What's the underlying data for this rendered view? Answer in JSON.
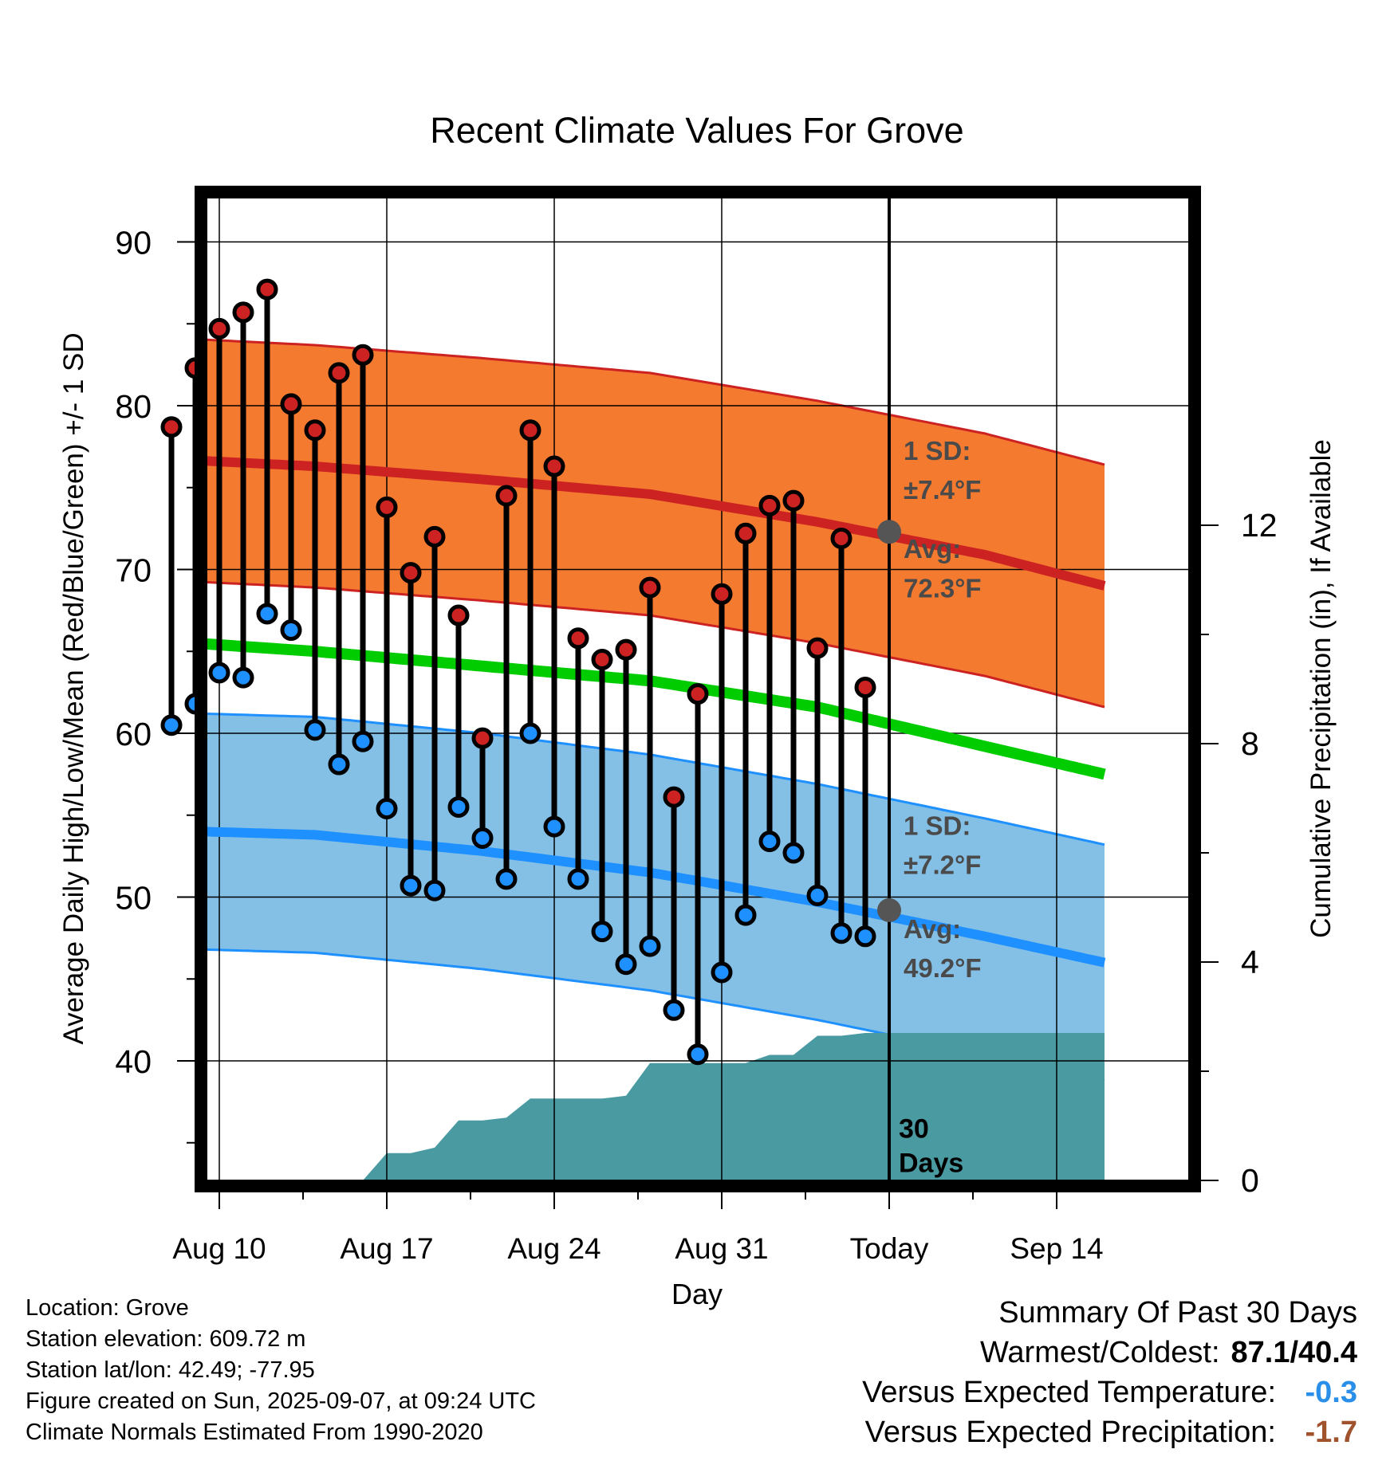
{
  "chart_data": {
    "type": "line",
    "title": "Recent Climate Values For Grove",
    "xlabel": "Day",
    "ylabel": "Average Daily High/Low/Mean (Red/Blue/Green) +/- 1 SD",
    "y2label": "Cumulative Precipitation (in), If Available",
    "ylim": [
      32.7,
      92.7
    ],
    "y2lim": [
      0,
      18
    ],
    "x_ticks": [
      "Aug 10",
      "Aug 17",
      "Aug 24",
      "Aug 31",
      "Today",
      "Sep 14"
    ],
    "y_ticks": [
      40,
      50,
      60,
      70,
      80,
      90
    ],
    "y2_ticks": [
      0,
      4,
      8,
      12
    ],
    "days": [
      "Aug 08",
      "Aug 09",
      "Aug 10",
      "Aug 11",
      "Aug 12",
      "Aug 13",
      "Aug 14",
      "Aug 15",
      "Aug 16",
      "Aug 17",
      "Aug 18",
      "Aug 19",
      "Aug 20",
      "Aug 21",
      "Aug 22",
      "Aug 23",
      "Aug 24",
      "Aug 25",
      "Aug 26",
      "Aug 27",
      "Aug 28",
      "Aug 29",
      "Aug 30",
      "Aug 31",
      "Sep 01",
      "Sep 02",
      "Sep 03",
      "Sep 04",
      "Sep 05",
      "Sep 06"
    ],
    "daily_high": [
      78.7,
      82.3,
      84.7,
      85.7,
      87.1,
      80.1,
      78.5,
      82.0,
      83.1,
      73.8,
      69.8,
      72.0,
      67.2,
      59.7,
      74.5,
      78.5,
      76.3,
      65.8,
      64.5,
      65.1,
      68.9,
      56.1,
      62.4,
      68.5,
      72.2,
      73.9,
      74.2,
      65.2,
      71.9,
      62.8
    ],
    "daily_low": [
      60.5,
      61.8,
      63.7,
      63.4,
      67.3,
      66.3,
      60.2,
      58.1,
      59.5,
      55.4,
      50.7,
      50.4,
      55.5,
      53.6,
      51.1,
      60.0,
      54.3,
      51.1,
      47.9,
      45.9,
      47.0,
      43.1,
      40.4,
      45.4,
      48.9,
      53.4,
      52.7,
      50.1,
      47.8,
      47.6
    ],
    "normal_days": [
      "Aug 07",
      "Aug 14",
      "Aug 21",
      "Aug 28",
      "Sep 04",
      "Sep 11",
      "Sep 16"
    ],
    "normal_high": [
      76.8,
      76.3,
      75.5,
      74.6,
      72.9,
      70.9,
      69.0
    ],
    "normal_high_sd": 7.4,
    "normal_low": [
      54.1,
      53.8,
      52.8,
      51.5,
      49.7,
      47.6,
      46.0
    ],
    "normal_low_sd": 7.2,
    "normal_mean": [
      65.7,
      65.0,
      64.1,
      63.2,
      61.6,
      59.2,
      57.5
    ],
    "precip_days": [
      "Aug 07",
      "Aug 15",
      "Aug 16",
      "Aug 17",
      "Aug 18",
      "Aug 19",
      "Aug 20",
      "Aug 21",
      "Aug 22",
      "Aug 23",
      "Aug 24",
      "Aug 25",
      "Aug 26",
      "Aug 27",
      "Aug 28",
      "Aug 29",
      "Aug 30",
      "Aug 31",
      "Sep 01",
      "Sep 02",
      "Sep 03",
      "Sep 04",
      "Sep 05",
      "Sep 06",
      "Sep 16"
    ],
    "cumulative_precip": [
      0,
      0,
      0,
      0.5,
      0.5,
      0.6,
      1.1,
      1.1,
      1.15,
      1.5,
      1.5,
      1.5,
      1.5,
      1.55,
      2.15,
      2.15,
      2.15,
      2.15,
      2.15,
      2.3,
      2.3,
      2.65,
      2.65,
      2.7,
      2.7
    ],
    "today_label": "Today",
    "high_sd_label": "1 SD:",
    "high_sd_value": "±7.4°F",
    "high_avg_label": "Avg:",
    "high_avg_value": "72.3°F",
    "low_sd_label": "1 SD:",
    "low_sd_value": "±7.2°F",
    "low_avg_label": "Avg:",
    "low_avg_value": "49.2°F",
    "period_label_1": "30",
    "period_label_2": "Days",
    "today_high_avg": 72.3,
    "today_low_avg": 49.2,
    "grid": true,
    "colors": {
      "high": "#cc2222",
      "high_band": "#f47a30",
      "low": "#1e90ff",
      "low_band": "#84c0e6",
      "mean": "#00cc00",
      "precip": "#4a9aa2",
      "dot_high": "#cc2222",
      "dot_low": "#1e90ff",
      "today_marker": "#555555"
    }
  },
  "info": {
    "location": "Location: Grove",
    "elevation": "Station elevation: 609.72 m",
    "latlon": "Station lat/lon: 42.49; -77.95",
    "created": "Figure created on Sun, 2025-09-07, at 09:24 UTC",
    "normals": "Climate Normals Estimated From 1990-2020"
  },
  "summary": {
    "title": "Summary Of Past 30 Days",
    "warm_cold_label": "Warmest/Coldest:",
    "warm_cold_value": "87.1/40.4",
    "temp_label": "Versus Expected Temperature:",
    "temp_value": "-0.3",
    "temp_color": "#2a8fe8",
    "precip_label": "Versus Expected Precipitation:",
    "precip_value": "-1.7",
    "precip_color": "#a0522d"
  }
}
